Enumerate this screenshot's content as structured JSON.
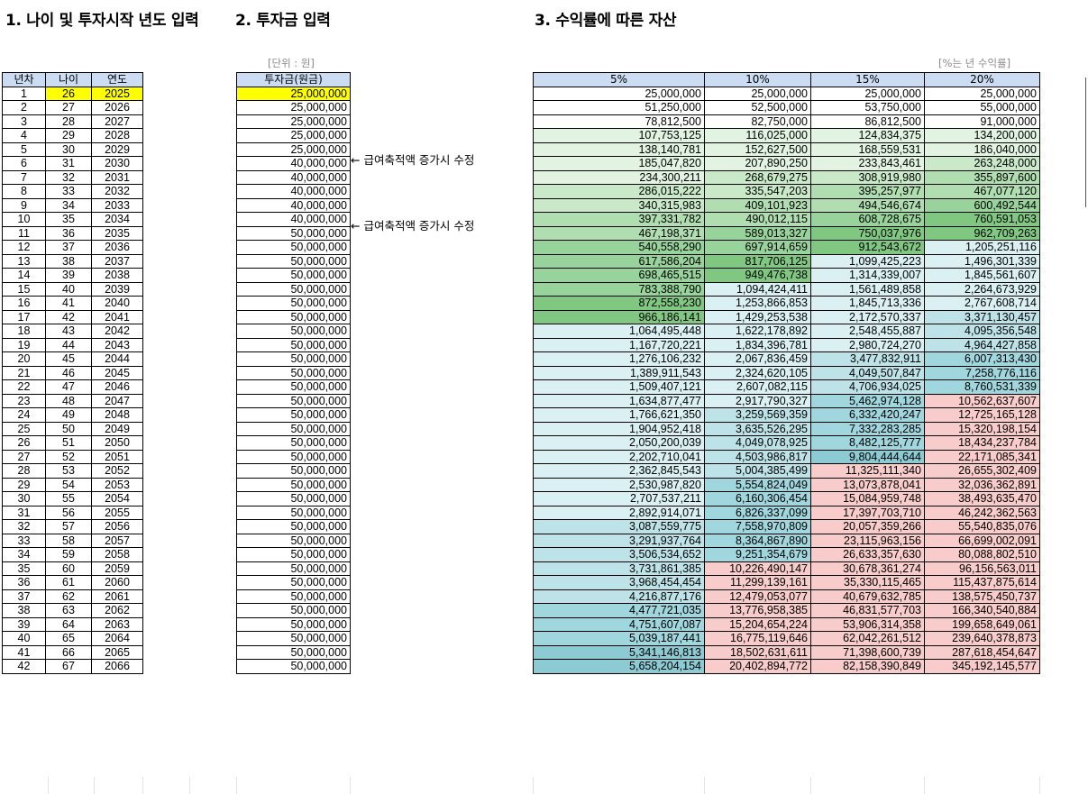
{
  "headings": {
    "h1": "1. 나이 및 투자시작 년도 입력",
    "h2": "2. 투자금 입력",
    "h3": "3. 수익률에 따른 자산"
  },
  "units": {
    "invest_unit": "[단위 : 원]",
    "rate_unit": "[%는 년 수익률]"
  },
  "left_table": {
    "headers": [
      "년차",
      "나이",
      "연도"
    ],
    "rows": [
      [
        "1",
        "26",
        "2025"
      ],
      [
        "2",
        "27",
        "2026"
      ],
      [
        "3",
        "28",
        "2027"
      ],
      [
        "4",
        "29",
        "2028"
      ],
      [
        "5",
        "30",
        "2029"
      ],
      [
        "6",
        "31",
        "2030"
      ],
      [
        "7",
        "32",
        "2031"
      ],
      [
        "8",
        "33",
        "2032"
      ],
      [
        "9",
        "34",
        "2033"
      ],
      [
        "10",
        "35",
        "2034"
      ],
      [
        "11",
        "36",
        "2035"
      ],
      [
        "12",
        "37",
        "2036"
      ],
      [
        "13",
        "38",
        "2037"
      ],
      [
        "14",
        "39",
        "2038"
      ],
      [
        "15",
        "40",
        "2039"
      ],
      [
        "16",
        "41",
        "2040"
      ],
      [
        "17",
        "42",
        "2041"
      ],
      [
        "18",
        "43",
        "2042"
      ],
      [
        "19",
        "44",
        "2043"
      ],
      [
        "20",
        "45",
        "2044"
      ],
      [
        "21",
        "46",
        "2045"
      ],
      [
        "22",
        "47",
        "2046"
      ],
      [
        "23",
        "48",
        "2047"
      ],
      [
        "24",
        "49",
        "2048"
      ],
      [
        "25",
        "50",
        "2049"
      ],
      [
        "26",
        "51",
        "2050"
      ],
      [
        "27",
        "52",
        "2051"
      ],
      [
        "28",
        "53",
        "2052"
      ],
      [
        "29",
        "54",
        "2053"
      ],
      [
        "30",
        "55",
        "2054"
      ],
      [
        "31",
        "56",
        "2055"
      ],
      [
        "32",
        "57",
        "2056"
      ],
      [
        "33",
        "58",
        "2057"
      ],
      [
        "34",
        "59",
        "2058"
      ],
      [
        "35",
        "60",
        "2059"
      ],
      [
        "36",
        "61",
        "2060"
      ],
      [
        "37",
        "62",
        "2061"
      ],
      [
        "38",
        "63",
        "2062"
      ],
      [
        "39",
        "64",
        "2063"
      ],
      [
        "40",
        "65",
        "2064"
      ],
      [
        "41",
        "66",
        "2065"
      ],
      [
        "42",
        "67",
        "2066"
      ]
    ]
  },
  "invest_table": {
    "header": "투자금(원금)",
    "values": [
      "25,000,000",
      "25,000,000",
      "25,000,000",
      "25,000,000",
      "25,000,000",
      "40,000,000",
      "40,000,000",
      "40,000,000",
      "40,000,000",
      "40,000,000",
      "50,000,000",
      "50,000,000",
      "50,000,000",
      "50,000,000",
      "50,000,000",
      "50,000,000",
      "50,000,000",
      "50,000,000",
      "50,000,000",
      "50,000,000",
      "50,000,000",
      "50,000,000",
      "50,000,000",
      "50,000,000",
      "50,000,000",
      "50,000,000",
      "50,000,000",
      "50,000,000",
      "50,000,000",
      "50,000,000",
      "50,000,000",
      "50,000,000",
      "50,000,000",
      "50,000,000",
      "50,000,000",
      "50,000,000",
      "50,000,000",
      "50,000,000",
      "50,000,000",
      "50,000,000",
      "50,000,000",
      "50,000,000"
    ],
    "notes": [
      {
        "row": 6,
        "text": "← 급여축적액 증가시 수정"
      },
      {
        "row": 11,
        "text": "← 급여축적액 증가시 수정"
      }
    ]
  },
  "colors": {
    "header_bg": "#ccdcf2",
    "input_highlight": "#ffff00",
    "white": "#ffffff",
    "green1": "#e2f3e2",
    "green2": "#c9e9c9",
    "green3": "#b0deb1",
    "green4": "#97d39a",
    "green5": "#80c882",
    "teal1": "#daf0f2",
    "teal2": "#bde3e8",
    "teal3": "#a0d6dd",
    "teal4": "#8dcbd4",
    "pink": "#f7cccb"
  },
  "returns_table": {
    "headers": [
      "5%",
      "10%",
      "15%",
      "20%"
    ],
    "rows": [
      [
        "25,000,000",
        "25,000,000",
        "25,000,000",
        "25,000,000"
      ],
      [
        "51,250,000",
        "52,500,000",
        "53,750,000",
        "55,000,000"
      ],
      [
        "78,812,500",
        "82,750,000",
        "86,812,500",
        "91,000,000"
      ],
      [
        "107,753,125",
        "116,025,000",
        "124,834,375",
        "134,200,000"
      ],
      [
        "138,140,781",
        "152,627,500",
        "168,559,531",
        "186,040,000"
      ],
      [
        "185,047,820",
        "207,890,250",
        "233,843,461",
        "263,248,000"
      ],
      [
        "234,300,211",
        "268,679,275",
        "308,919,980",
        "355,897,600"
      ],
      [
        "286,015,222",
        "335,547,203",
        "395,257,977",
        "467,077,120"
      ],
      [
        "340,315,983",
        "409,101,923",
        "494,546,674",
        "600,492,544"
      ],
      [
        "397,331,782",
        "490,012,115",
        "608,728,675",
        "760,591,053"
      ],
      [
        "467,198,371",
        "589,013,327",
        "750,037,976",
        "962,709,263"
      ],
      [
        "540,558,290",
        "697,914,659",
        "912,543,672",
        "1,205,251,116"
      ],
      [
        "617,586,204",
        "817,706,125",
        "1,099,425,223",
        "1,496,301,339"
      ],
      [
        "698,465,515",
        "949,476,738",
        "1,314,339,007",
        "1,845,561,607"
      ],
      [
        "783,388,790",
        "1,094,424,411",
        "1,561,489,858",
        "2,264,673,929"
      ],
      [
        "872,558,230",
        "1,253,866,853",
        "1,845,713,336",
        "2,767,608,714"
      ],
      [
        "966,186,141",
        "1,429,253,538",
        "2,172,570,337",
        "3,371,130,457"
      ],
      [
        "1,064,495,448",
        "1,622,178,892",
        "2,548,455,887",
        "4,095,356,548"
      ],
      [
        "1,167,720,221",
        "1,834,396,781",
        "2,980,724,270",
        "4,964,427,858"
      ],
      [
        "1,276,106,232",
        "2,067,836,459",
        "3,477,832,911",
        "6,007,313,430"
      ],
      [
        "1,389,911,543",
        "2,324,620,105",
        "4,049,507,847",
        "7,258,776,116"
      ],
      [
        "1,509,407,121",
        "2,607,082,115",
        "4,706,934,025",
        "8,760,531,339"
      ],
      [
        "1,634,877,477",
        "2,917,790,327",
        "5,462,974,128",
        "10,562,637,607"
      ],
      [
        "1,766,621,350",
        "3,259,569,359",
        "6,332,420,247",
        "12,725,165,128"
      ],
      [
        "1,904,952,418",
        "3,635,526,295",
        "7,332,283,285",
        "15,320,198,154"
      ],
      [
        "2,050,200,039",
        "4,049,078,925",
        "8,482,125,777",
        "18,434,237,784"
      ],
      [
        "2,202,710,041",
        "4,503,986,817",
        "9,804,444,644",
        "22,171,085,341"
      ],
      [
        "2,362,845,543",
        "5,004,385,499",
        "11,325,111,340",
        "26,655,302,409"
      ],
      [
        "2,530,987,820",
        "5,554,824,049",
        "13,073,878,041",
        "32,036,362,891"
      ],
      [
        "2,707,537,211",
        "6,160,306,454",
        "15,084,959,748",
        "38,493,635,470"
      ],
      [
        "2,892,914,071",
        "6,826,337,099",
        "17,397,703,710",
        "46,242,362,563"
      ],
      [
        "3,087,559,775",
        "7,558,970,809",
        "20,057,359,266",
        "55,540,835,076"
      ],
      [
        "3,291,937,764",
        "8,364,867,890",
        "23,115,963,156",
        "66,699,002,091"
      ],
      [
        "3,506,534,652",
        "9,251,354,679",
        "26,633,357,630",
        "80,088,802,510"
      ],
      [
        "3,731,861,385",
        "10,226,490,147",
        "30,678,361,274",
        "96,156,563,011"
      ],
      [
        "3,968,454,454",
        "11,299,139,161",
        "35,330,115,465",
        "115,437,875,614"
      ],
      [
        "4,216,877,176",
        "12,479,053,077",
        "40,679,632,785",
        "138,575,450,737"
      ],
      [
        "4,477,721,035",
        "13,776,958,385",
        "46,831,577,703",
        "166,340,540,884"
      ],
      [
        "4,751,607,087",
        "15,204,654,224",
        "53,906,314,358",
        "199,658,649,061"
      ],
      [
        "5,039,187,441",
        "16,775,119,646",
        "62,042,261,512",
        "239,640,378,873"
      ],
      [
        "5,341,146,813",
        "18,502,631,611",
        "71,398,600,739",
        "287,618,454,647"
      ],
      [
        "5,658,204,154",
        "20,402,894,772",
        "82,158,390,849",
        "345,192,145,577"
      ]
    ],
    "row_colors": [
      [
        "white",
        "white",
        "white",
        "white"
      ],
      [
        "white",
        "white",
        "white",
        "white"
      ],
      [
        "white",
        "white",
        "white",
        "white"
      ],
      [
        "green1",
        "green1",
        "green1",
        "green1"
      ],
      [
        "green1",
        "green1",
        "green1",
        "green1"
      ],
      [
        "green1",
        "green1",
        "green1",
        "green2"
      ],
      [
        "green1",
        "green2",
        "green2",
        "green3"
      ],
      [
        "green2",
        "green2",
        "green3",
        "green3"
      ],
      [
        "green2",
        "green3",
        "green3",
        "green4"
      ],
      [
        "green3",
        "green3",
        "green4",
        "green5"
      ],
      [
        "green3",
        "green4",
        "green5",
        "green5"
      ],
      [
        "green4",
        "green4",
        "green5",
        "teal1"
      ],
      [
        "green4",
        "green5",
        "teal1",
        "teal1"
      ],
      [
        "green4",
        "green5",
        "teal1",
        "teal1"
      ],
      [
        "green4",
        "teal1",
        "teal1",
        "teal1"
      ],
      [
        "green5",
        "teal1",
        "teal1",
        "teal1"
      ],
      [
        "green5",
        "teal1",
        "teal1",
        "teal2"
      ],
      [
        "teal1",
        "teal1",
        "teal1",
        "teal2"
      ],
      [
        "teal1",
        "teal1",
        "teal1",
        "teal2"
      ],
      [
        "teal1",
        "teal1",
        "teal2",
        "teal3"
      ],
      [
        "teal1",
        "teal1",
        "teal2",
        "teal3"
      ],
      [
        "teal1",
        "teal1",
        "teal2",
        "teal3"
      ],
      [
        "teal1",
        "teal1",
        "teal3",
        "pink"
      ],
      [
        "teal1",
        "teal2",
        "teal3",
        "pink"
      ],
      [
        "teal1",
        "teal2",
        "teal3",
        "pink"
      ],
      [
        "teal1",
        "teal2",
        "teal3",
        "pink"
      ],
      [
        "teal1",
        "teal2",
        "teal4",
        "pink"
      ],
      [
        "teal1",
        "teal2",
        "pink",
        "pink"
      ],
      [
        "teal1",
        "teal3",
        "pink",
        "pink"
      ],
      [
        "teal1",
        "teal3",
        "pink",
        "pink"
      ],
      [
        "teal1",
        "teal3",
        "pink",
        "pink"
      ],
      [
        "teal2",
        "teal3",
        "pink",
        "pink"
      ],
      [
        "teal2",
        "teal3",
        "pink",
        "pink"
      ],
      [
        "teal2",
        "teal3",
        "pink",
        "pink"
      ],
      [
        "teal2",
        "pink",
        "pink",
        "pink"
      ],
      [
        "teal2",
        "pink",
        "pink",
        "pink"
      ],
      [
        "teal2",
        "pink",
        "pink",
        "pink"
      ],
      [
        "teal3",
        "pink",
        "pink",
        "pink"
      ],
      [
        "teal3",
        "pink",
        "pink",
        "pink"
      ],
      [
        "teal3",
        "pink",
        "pink",
        "pink"
      ],
      [
        "teal4",
        "pink",
        "pink",
        "pink"
      ],
      [
        "teal4",
        "pink",
        "pink",
        "pink"
      ]
    ]
  }
}
